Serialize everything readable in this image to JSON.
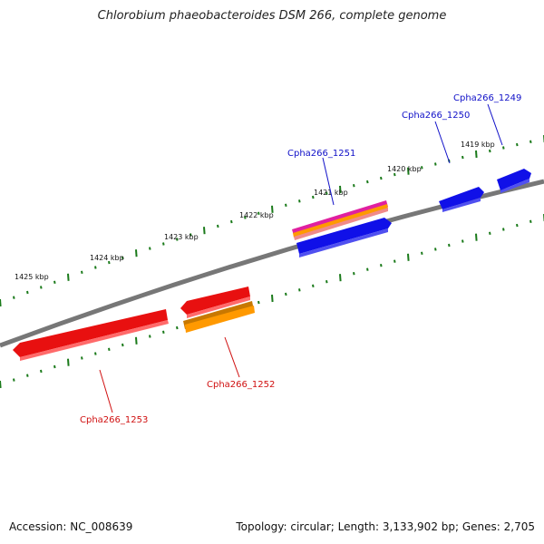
{
  "title": "Chlorobium phaeobacteroides DSM 266, complete genome",
  "accession": "Accession: NC_008639",
  "summary": "Topology: circular; Length: 3,133,902 bp; Genes: 2,705",
  "ticks": [
    {
      "label": "1419 kbp"
    },
    {
      "label": "1420 kbp"
    },
    {
      "label": "1421 kbp"
    },
    {
      "label": "1422 kbp"
    },
    {
      "label": "1423 kbp"
    },
    {
      "label": "1424 kbp"
    },
    {
      "label": "1425 kbp"
    }
  ],
  "genes": [
    {
      "label": "Cpha266_1249",
      "strand": "forward",
      "color": "#1010e8"
    },
    {
      "label": "Cpha266_1250",
      "strand": "forward",
      "color": "#1010e8"
    },
    {
      "label": "Cpha266_1251",
      "strand": "forward",
      "color": "#1010e8"
    },
    {
      "label": "Cpha266_1252",
      "strand": "reverse",
      "color": "#e81010"
    },
    {
      "label": "Cpha266_1253",
      "strand": "reverse",
      "color": "#e81010"
    }
  ],
  "colors": {
    "backbone": "#777777",
    "tick": "#1a7a1a",
    "forward_gene": "#1010e8",
    "reverse_gene": "#e81010",
    "orange_feature": "#ff9900",
    "magenta_feature": "#e020a0"
  }
}
